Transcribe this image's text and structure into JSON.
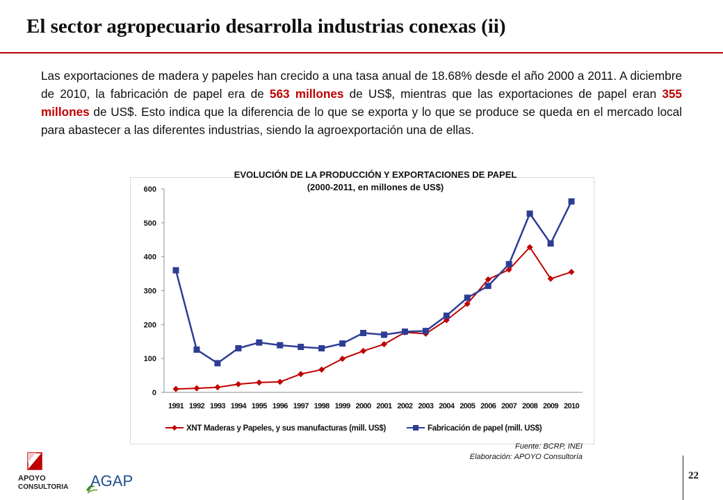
{
  "slide": {
    "title": "El sector agropecuario desarrolla industrias conexas (ii)",
    "paragraph": {
      "t1": "Las exportaciones de madera y papeles han crecido a una tasa anual de 18.68% desde el año 2000 a 2011. A diciembre de 2010, la fabricación de papel era de ",
      "h1": "563 millones",
      "t2": " de US$, mientras que las exportaciones de papel eran ",
      "h2": "355 millones",
      "t3": " de US$. Esto indica que la diferencia de lo que se exporta y lo que se produce se queda en el mercado local para abastecer a las diferentes industrias, siendo la agroexportación una de ellas."
    },
    "source_line1": "Fuente: BCRP, INEI",
    "source_line2": "Elaboración: APOYO Consultoría",
    "page_number": "22",
    "logos": {
      "apoyo_line1": "APOYO",
      "apoyo_line2": "CONSULTORIA",
      "agap": "AGAP"
    },
    "colors": {
      "accent": "#c00000",
      "series_export": "#c00000",
      "series_production": "#2e3d94"
    }
  },
  "chart_data": {
    "type": "line",
    "title_line1": "EVOLUCIÓN DE LA PRODUCCIÓN Y EXPORTACIONES DE PAPEL",
    "title_line2": "(2000-2011, en millones de US$)",
    "categories": [
      "1991",
      "1992",
      "1993",
      "1994",
      "1995",
      "1996",
      "1997",
      "1998",
      "1999",
      "2000",
      "2001",
      "2002",
      "2003",
      "2004",
      "2005",
      "2006",
      "2007",
      "2008",
      "2009",
      "2010"
    ],
    "ylim": [
      0,
      600
    ],
    "yticks": [
      0,
      100,
      200,
      300,
      400,
      500,
      600
    ],
    "grid": false,
    "legend_position": "bottom",
    "series": [
      {
        "name": "XNT Maderas y Papeles, y sus manufacturas (mill. US$)",
        "marker": "diamond",
        "color": "#c00000",
        "values": [
          10,
          12,
          15,
          24,
          29,
          31,
          54,
          67,
          99,
          122,
          142,
          177,
          173,
          213,
          261,
          333,
          362,
          428,
          335,
          355
        ]
      },
      {
        "name": "Fabricación de papel (mill. US$)",
        "marker": "square",
        "color": "#2e3d94",
        "values": [
          360,
          126,
          86,
          130,
          147,
          139,
          134,
          130,
          144,
          175,
          170,
          179,
          181,
          226,
          279,
          314,
          378,
          527,
          439,
          563
        ]
      }
    ]
  }
}
